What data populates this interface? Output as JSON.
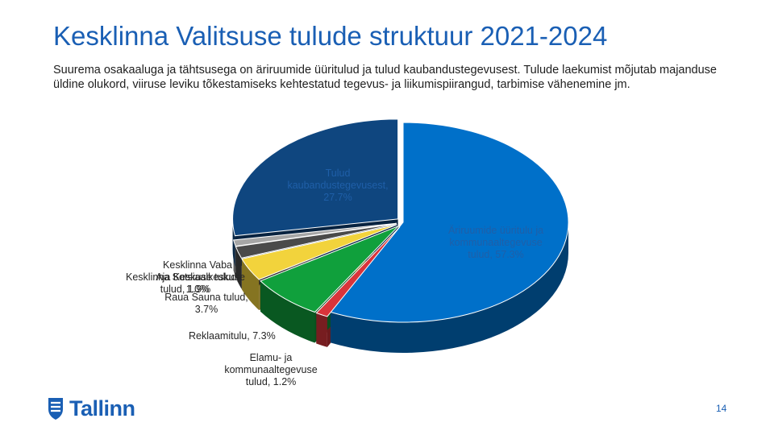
{
  "slide": {
    "title": "Kesklinna Valitsuse tulude struktuur 2021-2024",
    "subtitle": "Suurema osakaaluga ja tähtsusega on äriruumide üüritulud ja tulud kaubandustegevusest. Tulude laekumist mõjutab majanduse üldine olukord, viiruse leviku tõkestamiseks kehtestatud tegevus- ja liikumispiirangud, tarbimise vähenemine jm.",
    "page_number": "14"
  },
  "logo": {
    "text": "Tallinn",
    "icon": "tallinn-crest-icon"
  },
  "chart_data": {
    "type": "pie",
    "style": "3d-exploded",
    "title": "",
    "slices": [
      {
        "label": "Äriruumide üüritulu ja kommunaaltegevuse tulud, 57.3%",
        "value": 57.3,
        "color": "#0070c9"
      },
      {
        "label": "Elamu- ja kommunaaltegevuse tulud, 1.2%",
        "value": 1.2,
        "color": "#d9343a"
      },
      {
        "label": "Reklaamitulu, 7.3%",
        "value": 7.3,
        "color": "#10a03c"
      },
      {
        "label": "Raua Sauna tulud, 3.7%",
        "value": 3.7,
        "color": "#f2d33c"
      },
      {
        "label": "Kesklinna Sotsiaalkeskuse tulud, 1.9%",
        "value": 1.9,
        "color": "#4a4a4a"
      },
      {
        "label": "Kesklinna Vaba Aja Keskuse tulud, 1.0%",
        "value": 1.0,
        "color": "#a6a6a6"
      },
      {
        "label": "Tulud kaubandustegevusest, 27.7%",
        "value": 27.7,
        "color": "#0f467f"
      }
    ],
    "label_colors": {
      "on_slice": "#1f5fa8",
      "outside": "#262626"
    }
  }
}
